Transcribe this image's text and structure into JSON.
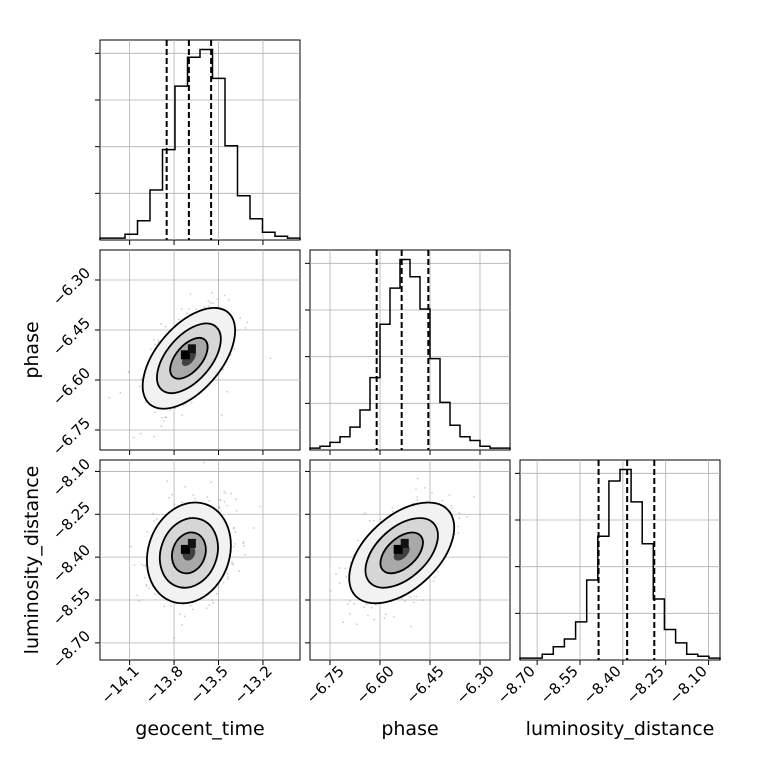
{
  "chart_data": {
    "type": "corner",
    "parameters": [
      "geocent_time",
      "phase",
      "luminosity_distance"
    ],
    "axis_labels": {
      "geocent_time": "geocent_time",
      "phase": "phase",
      "luminosity_distance": "luminosity_distance"
    },
    "ranges": {
      "geocent_time": [
        -14.3,
        -12.95
      ],
      "phase": [
        -6.81,
        -6.21
      ],
      "luminosity_distance": [
        -8.76,
        -8.06
      ]
    },
    "ticks": {
      "geocent_time": [
        "−14.1",
        "−13.8",
        "−13.5",
        "−13.2"
      ],
      "phase": [
        "−6.75",
        "−6.60",
        "−6.45",
        "−6.30"
      ],
      "luminosity_distance": [
        "−8.70",
        "−8.55",
        "−8.40",
        "−8.25",
        "−8.10"
      ]
    },
    "tick_values": {
      "geocent_time": [
        -14.1,
        -13.8,
        -13.5,
        -13.2
      ],
      "phase": [
        -6.75,
        -6.6,
        -6.45,
        -6.3
      ],
      "luminosity_distance": [
        -8.7,
        -8.55,
        -8.4,
        -8.25,
        -8.1
      ]
    },
    "quantiles": {
      "geocent_time": [
        -13.85,
        -13.7,
        -13.55
      ],
      "phase": [
        -6.61,
        -6.535,
        -6.455
      ],
      "luminosity_distance": [
        -8.485,
        -8.385,
        -8.29
      ]
    },
    "histograms": {
      "geocent_time": [
        1,
        1,
        3,
        10,
        26,
        47,
        80,
        95,
        99,
        84,
        49,
        23,
        11,
        4,
        2,
        1
      ],
      "phase": [
        1,
        2,
        4,
        7,
        12,
        21,
        38,
        66,
        85,
        100,
        91,
        74,
        48,
        25,
        13,
        7,
        5,
        2,
        1,
        1
      ],
      "luminosity_distance": [
        1,
        1,
        3,
        7,
        11,
        20,
        42,
        65,
        94,
        100,
        83,
        61,
        32,
        16,
        9,
        3,
        2,
        1
      ]
    },
    "grid": true,
    "legend": "none"
  }
}
